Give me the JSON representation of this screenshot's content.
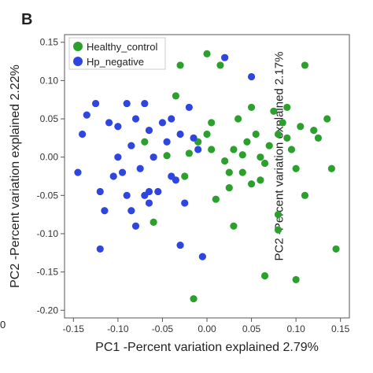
{
  "panel_label": "B",
  "left_edge_fragment": "0",
  "right_edge_fragment": "PC2 -Percent variation explained 2.17%",
  "chart_data": {
    "type": "scatter",
    "xlabel": "PC1 -Percent variation explained 2.79%",
    "ylabel": "PC2 -Percent variation explained 2.22%",
    "xlim": [
      -0.16,
      0.16
    ],
    "ylim": [
      -0.21,
      0.16
    ],
    "xticks": [
      "-0.15",
      "-0.10",
      "-0.05",
      "0.00",
      "0.05",
      "0.10",
      "0.15"
    ],
    "yticks": [
      "-0.20",
      "-0.15",
      "-0.10",
      "-0.05",
      "0.00",
      "0.05",
      "0.10",
      "0.15"
    ],
    "legend_position": "top-left",
    "series": [
      {
        "name": "Healthy_control",
        "color": "#2ca02c",
        "points": [
          [
            -0.07,
            0.02
          ],
          [
            -0.045,
            0.002
          ],
          [
            -0.03,
            0.12
          ],
          [
            -0.02,
            0.005
          ],
          [
            -0.01,
            0.02
          ],
          [
            0.0,
            0.135
          ],
          [
            0.0,
            0.03
          ],
          [
            0.005,
            0.01
          ],
          [
            0.015,
            0.12
          ],
          [
            0.02,
            -0.005
          ],
          [
            0.025,
            -0.02
          ],
          [
            0.03,
            0.01
          ],
          [
            0.035,
            0.05
          ],
          [
            0.04,
            0.003
          ],
          [
            0.045,
            0.02
          ],
          [
            0.05,
            0.065
          ],
          [
            0.055,
            0.03
          ],
          [
            0.06,
            0.0
          ],
          [
            0.065,
            -0.008
          ],
          [
            0.07,
            0.015
          ],
          [
            0.075,
            0.06
          ],
          [
            0.08,
            0.03
          ],
          [
            0.085,
            0.045
          ],
          [
            0.09,
            0.025
          ],
          [
            0.095,
            0.01
          ],
          [
            0.1,
            -0.015
          ],
          [
            0.105,
            0.04
          ],
          [
            0.11,
            0.12
          ],
          [
            0.12,
            0.035
          ],
          [
            0.125,
            0.025
          ],
          [
            0.135,
            0.05
          ],
          [
            0.14,
            -0.015
          ],
          [
            0.145,
            -0.12
          ],
          [
            0.08,
            -0.075
          ],
          [
            0.08,
            -0.095
          ],
          [
            0.1,
            -0.16
          ],
          [
            0.065,
            -0.155
          ],
          [
            0.03,
            -0.09
          ],
          [
            0.025,
            -0.04
          ],
          [
            -0.015,
            -0.185
          ],
          [
            -0.025,
            -0.025
          ],
          [
            -0.06,
            -0.085
          ],
          [
            -0.035,
            0.08
          ],
          [
            0.01,
            -0.055
          ],
          [
            0.05,
            -0.035
          ],
          [
            0.04,
            -0.02
          ],
          [
            0.11,
            -0.05
          ],
          [
            0.09,
            0.065
          ],
          [
            0.005,
            0.045
          ],
          [
            0.06,
            -0.03
          ]
        ]
      },
      {
        "name": "Hp_negative",
        "color": "#2f45e0",
        "points": [
          [
            -0.145,
            -0.02
          ],
          [
            -0.14,
            0.03
          ],
          [
            -0.135,
            0.055
          ],
          [
            -0.125,
            0.07
          ],
          [
            -0.12,
            -0.045
          ],
          [
            -0.115,
            -0.07
          ],
          [
            -0.11,
            0.045
          ],
          [
            -0.105,
            -0.025
          ],
          [
            -0.1,
            0.0
          ],
          [
            -0.095,
            -0.02
          ],
          [
            -0.09,
            0.07
          ],
          [
            -0.085,
            0.015
          ],
          [
            -0.08,
            0.05
          ],
          [
            -0.075,
            -0.015
          ],
          [
            -0.07,
            0.07
          ],
          [
            -0.065,
            0.035
          ],
          [
            -0.06,
            0.0
          ],
          [
            -0.055,
            -0.045
          ],
          [
            -0.05,
            0.045
          ],
          [
            -0.045,
            0.02
          ],
          [
            -0.04,
            -0.025
          ],
          [
            -0.035,
            -0.03
          ],
          [
            -0.03,
            0.03
          ],
          [
            -0.025,
            -0.06
          ],
          [
            -0.02,
            0.065
          ],
          [
            -0.015,
            0.025
          ],
          [
            -0.01,
            0.01
          ],
          [
            -0.065,
            -0.06
          ],
          [
            -0.08,
            -0.09
          ],
          [
            -0.12,
            -0.12
          ],
          [
            -0.03,
            -0.115
          ],
          [
            -0.005,
            -0.13
          ],
          [
            0.02,
            0.13
          ],
          [
            0.05,
            0.105
          ],
          [
            -0.07,
            -0.05
          ],
          [
            -0.09,
            -0.05
          ],
          [
            -0.04,
            0.05
          ],
          [
            -0.065,
            -0.045
          ],
          [
            -0.1,
            0.04
          ],
          [
            -0.085,
            -0.07
          ]
        ]
      }
    ]
  }
}
